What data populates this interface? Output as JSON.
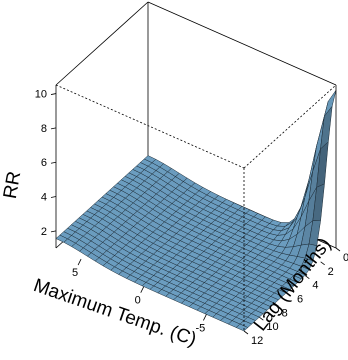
{
  "chart_data": {
    "type": "surface3d",
    "zlabel": "RR",
    "xlabel": "Maximum Temp. (C)",
    "ylabel": "Lag (Months)",
    "x_ticks": [
      5,
      0,
      -5
    ],
    "y_ticks": [
      0,
      2,
      4,
      6,
      8,
      10,
      12
    ],
    "z_ticks": [
      2,
      4,
      6,
      8,
      10
    ],
    "xlim": [
      -8,
      7
    ],
    "ylim": [
      0,
      12
    ],
    "zlim": [
      1,
      10.5
    ],
    "peak": {
      "x": -8,
      "y": 0,
      "z": 10.2
    },
    "surface_color": "#6b9dc0",
    "grid_n": 24
  }
}
